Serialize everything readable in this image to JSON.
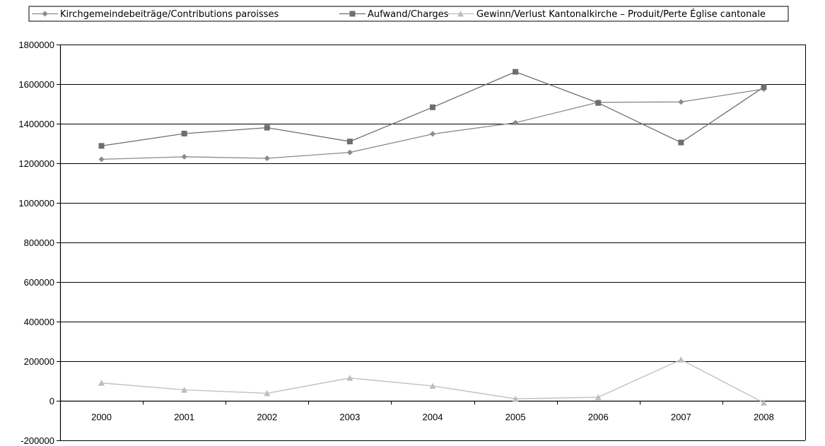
{
  "chart_data": {
    "type": "line",
    "title": "",
    "xlabel": "",
    "ylabel": "",
    "categories": [
      "2000",
      "2001",
      "2002",
      "2003",
      "2004",
      "2005",
      "2006",
      "2007",
      "2008"
    ],
    "ylim": [
      -200000,
      1800000
    ],
    "yticks": [
      "1800000",
      "1600000",
      "1400000",
      "1200000",
      "1000000",
      "800000",
      "600000",
      "400000",
      "200000",
      "0",
      "-200000"
    ],
    "grid": "horizontal",
    "legend_position": "top",
    "series": [
      {
        "name": "Kirchgemeindebeiträge/Contributions paroisses",
        "marker": "diamond",
        "color": "#8a8a8a",
        "values": [
          1220000,
          1233000,
          1225000,
          1255000,
          1348000,
          1405000,
          1508000,
          1510000,
          1575000
        ]
      },
      {
        "name": "Aufwand/Charges",
        "marker": "square",
        "color": "#6e6e6e",
        "values": [
          1288000,
          1350000,
          1380000,
          1310000,
          1483000,
          1662000,
          1505000,
          1305000,
          1585000
        ]
      },
      {
        "name": "Gewinn/Verlust Kantonalkirche – Produit/Perte Église cantonale",
        "marker": "triangle",
        "color": "#bdbdbd",
        "values": [
          90000,
          55000,
          38000,
          115000,
          75000,
          10000,
          18000,
          208000,
          -10000
        ]
      }
    ]
  }
}
